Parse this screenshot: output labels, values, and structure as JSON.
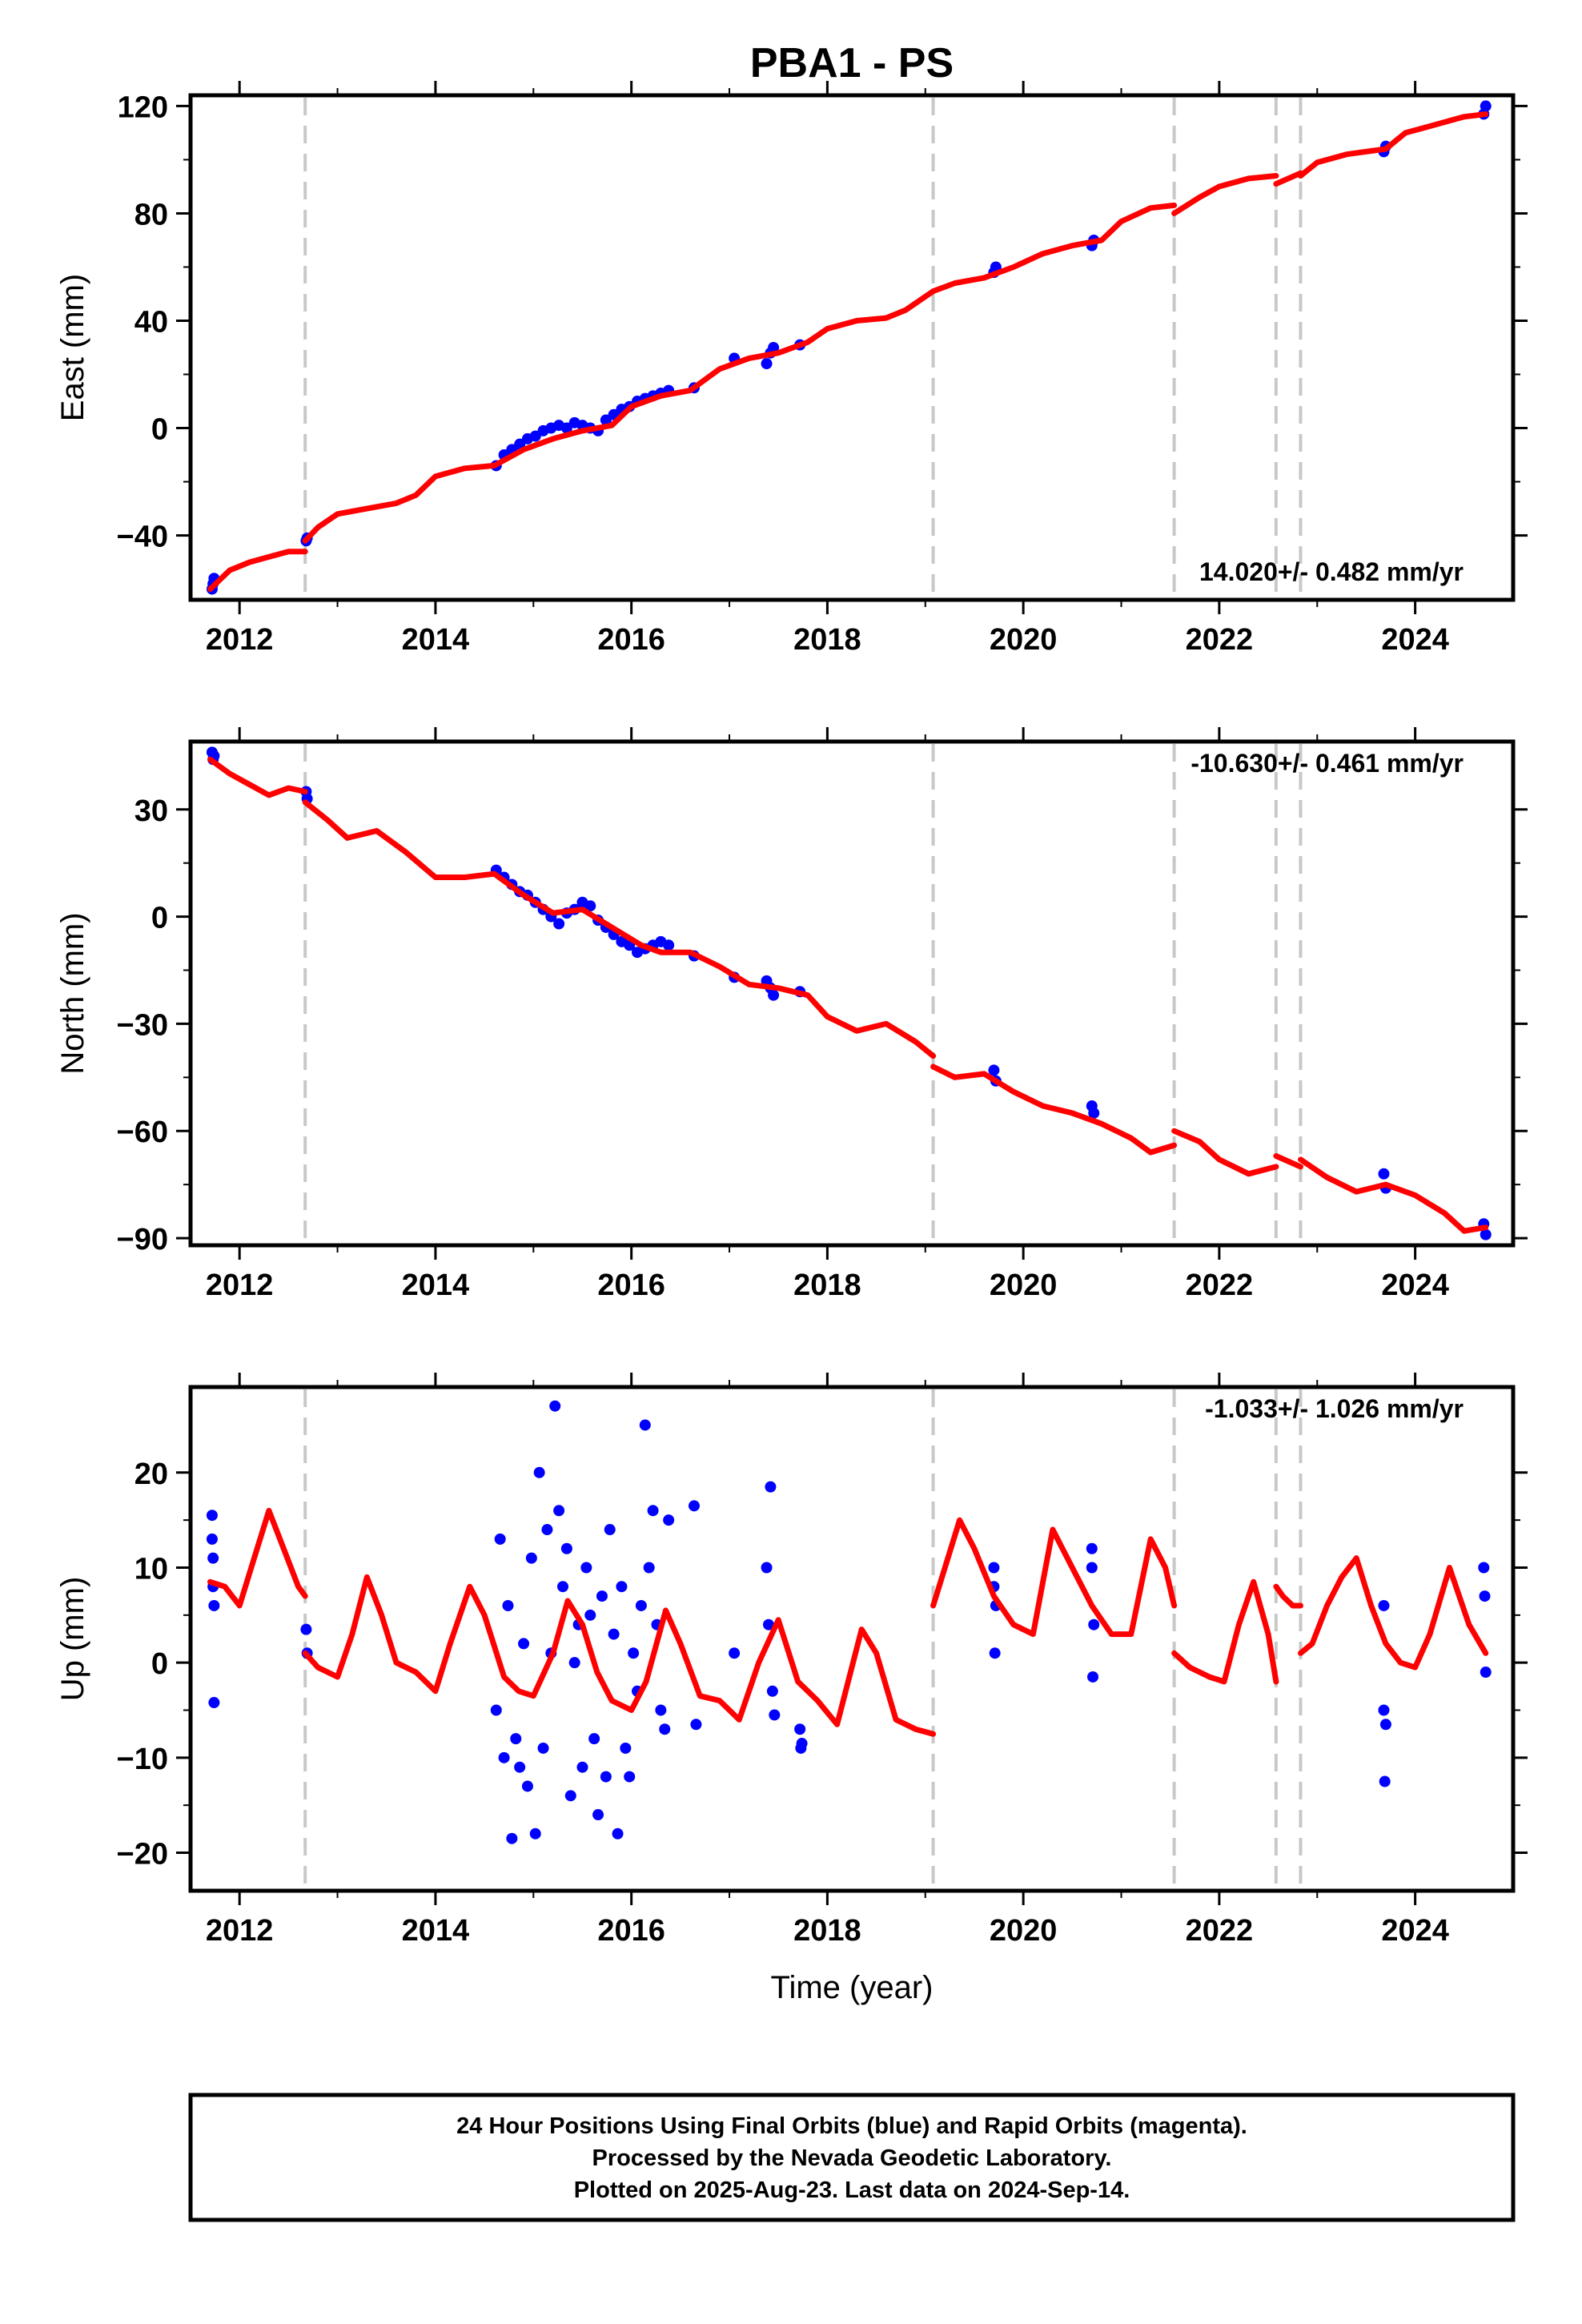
{
  "title": "PBA1 - PS",
  "colors": {
    "data_points": "#0000ff",
    "model_line": "#ff0000",
    "event_lines": "#c8c8c8",
    "axes": "#000000"
  },
  "event_lines_x": [
    2012.67,
    2019.08,
    2021.54,
    2022.58,
    2022.83
  ],
  "x_axis": {
    "xlabel": "Time (year)",
    "xlim": [
      2011.5,
      2025.0
    ],
    "ticks": [
      2012,
      2014,
      2016,
      2018,
      2020,
      2022,
      2024
    ],
    "tick_labels": [
      "2012",
      "2014",
      "2016",
      "2018",
      "2020",
      "2022",
      "2024"
    ]
  },
  "chart_data": [
    {
      "type": "scatter",
      "title": "",
      "ylabel": "East (mm)",
      "xlim": [
        2011.5,
        2025.0
      ],
      "ylim": [
        -64,
        124
      ],
      "yticks": [
        -40,
        0,
        40,
        80,
        120
      ],
      "ytick_labels": [
        "−40",
        "0",
        "40",
        "80",
        "120"
      ],
      "rate_label": "14.020+/- 0.482 mm/yr",
      "rate_position": "bottom-right",
      "series": [
        {
          "kind": "points",
          "x": [
            2011.72,
            2011.73,
            2011.74,
            2012.68,
            2012.69,
            2014.62,
            2014.7,
            2014.78,
            2014.86,
            2014.94,
            2015.02,
            2015.1,
            2015.18,
            2015.26,
            2015.34,
            2015.42,
            2015.5,
            2015.58,
            2015.66,
            2015.74,
            2015.82,
            2015.9,
            2015.98,
            2016.06,
            2016.14,
            2016.22,
            2016.3,
            2016.38,
            2016.64,
            2017.05,
            2017.38,
            2017.42,
            2017.45,
            2017.72,
            2019.7,
            2019.72,
            2020.7,
            2020.72,
            2023.68,
            2023.7,
            2024.7,
            2024.72
          ],
          "y": [
            -60,
            -58,
            -56,
            -42,
            -41,
            -14,
            -10,
            -8,
            -6,
            -4,
            -3,
            -1,
            0,
            1,
            0,
            2,
            1,
            0,
            -1,
            3,
            5,
            7,
            8,
            10,
            11,
            12,
            13,
            14,
            15,
            26,
            24,
            28,
            30,
            31,
            58,
            60,
            68,
            70,
            103,
            105,
            117,
            120
          ]
        },
        {
          "kind": "line",
          "segments": [
            {
              "x": [
                2011.7,
                2011.9,
                2012.1,
                2012.3,
                2012.5,
                2012.67
              ],
              "y": [
                -60,
                -53,
                -50,
                -48,
                -46,
                -46
              ]
            },
            {
              "x": [
                2012.67,
                2012.8,
                2013.0,
                2013.3,
                2013.6,
                2013.8,
                2014.0,
                2014.3,
                2014.6,
                2014.9,
                2015.2,
                2015.5,
                2015.8,
                2016.0,
                2016.3,
                2016.6,
                2016.9,
                2017.2,
                2017.5,
                2017.8,
                2018.0,
                2018.3,
                2018.6,
                2018.8,
                2019.08
              ],
              "y": [
                -42,
                -37,
                -32,
                -30,
                -28,
                -25,
                -18,
                -15,
                -14,
                -8,
                -4,
                -1,
                1,
                8,
                12,
                14,
                22,
                26,
                28,
                32,
                37,
                40,
                41,
                44,
                51
              ]
            },
            {
              "x": [
                2019.08,
                2019.3,
                2019.6,
                2019.9,
                2020.2,
                2020.5,
                2020.8,
                2021.0,
                2021.3,
                2021.54
              ],
              "y": [
                51,
                54,
                56,
                60,
                65,
                68,
                70,
                77,
                82,
                83
              ]
            },
            {
              "x": [
                2021.54,
                2021.8,
                2022.0,
                2022.3,
                2022.58
              ],
              "y": [
                80,
                86,
                90,
                93,
                94
              ]
            },
            {
              "x": [
                2022.58,
                2022.83
              ],
              "y": [
                91,
                95
              ]
            },
            {
              "x": [
                2022.83,
                2023.0,
                2023.3,
                2023.7,
                2023.9,
                2024.2,
                2024.5,
                2024.72
              ],
              "y": [
                94,
                99,
                102,
                104,
                110,
                113,
                116,
                117
              ]
            }
          ]
        }
      ]
    },
    {
      "type": "scatter",
      "title": "",
      "ylabel": "North (mm)",
      "xlim": [
        2011.5,
        2025.0
      ],
      "ylim": [
        -92,
        49
      ],
      "yticks": [
        -90,
        -60,
        -30,
        0,
        30
      ],
      "ytick_labels": [
        "−90",
        "−60",
        "−30",
        "0",
        "30"
      ],
      "rate_label": "-10.630+/- 0.461 mm/yr",
      "rate_position": "top-right",
      "series": [
        {
          "kind": "points",
          "x": [
            2011.72,
            2011.73,
            2011.74,
            2012.68,
            2012.69,
            2014.62,
            2014.7,
            2014.78,
            2014.86,
            2014.94,
            2015.02,
            2015.1,
            2015.18,
            2015.26,
            2015.34,
            2015.42,
            2015.5,
            2015.58,
            2015.66,
            2015.74,
            2015.82,
            2015.9,
            2015.98,
            2016.06,
            2016.14,
            2016.22,
            2016.3,
            2016.38,
            2016.64,
            2017.05,
            2017.38,
            2017.42,
            2017.45,
            2017.72,
            2019.7,
            2019.72,
            2020.7,
            2020.72,
            2023.68,
            2023.7,
            2024.7,
            2024.72
          ],
          "y": [
            46,
            44,
            45,
            35,
            33,
            13,
            11,
            9,
            7,
            6,
            4,
            2,
            0,
            -2,
            1,
            2,
            4,
            3,
            -1,
            -3,
            -5,
            -7,
            -8,
            -10,
            -9,
            -8,
            -7,
            -8,
            -11,
            -17,
            -18,
            -20,
            -22,
            -21,
            -43,
            -46,
            -53,
            -55,
            -72,
            -76,
            -86,
            -89
          ]
        },
        {
          "kind": "line",
          "segments": [
            {
              "x": [
                2011.7,
                2011.9,
                2012.1,
                2012.3,
                2012.5,
                2012.67
              ],
              "y": [
                44,
                40,
                37,
                34,
                36,
                35
              ]
            },
            {
              "x": [
                2012.67,
                2012.9,
                2013.1,
                2013.4,
                2013.7,
                2014.0,
                2014.3,
                2014.6,
                2014.9,
                2015.2,
                2015.5,
                2015.8,
                2016.1,
                2016.3,
                2016.6,
                2016.9,
                2017.2,
                2017.5,
                2017.8,
                2018.0,
                2018.3,
                2018.6,
                2018.9,
                2019.08
              ],
              "y": [
                32,
                27,
                22,
                24,
                18,
                11,
                11,
                12,
                6,
                1,
                2,
                -3,
                -8,
                -10,
                -10,
                -14,
                -19,
                -20,
                -22,
                -28,
                -32,
                -30,
                -35,
                -39
              ]
            },
            {
              "x": [
                2019.08,
                2019.3,
                2019.6,
                2019.9,
                2020.2,
                2020.5,
                2020.8,
                2021.1,
                2021.3,
                2021.54
              ],
              "y": [
                -42,
                -45,
                -44,
                -49,
                -53,
                -55,
                -58,
                -62,
                -66,
                -64
              ]
            },
            {
              "x": [
                2021.54,
                2021.8,
                2022.0,
                2022.3,
                2022.58
              ],
              "y": [
                -60,
                -63,
                -68,
                -72,
                -70
              ]
            },
            {
              "x": [
                2022.58,
                2022.83
              ],
              "y": [
                -67,
                -70
              ]
            },
            {
              "x": [
                2022.83,
                2023.1,
                2023.4,
                2023.7,
                2024.0,
                2024.3,
                2024.5,
                2024.72
              ],
              "y": [
                -68,
                -73,
                -77,
                -75,
                -78,
                -83,
                -88,
                -87
              ]
            }
          ]
        }
      ]
    },
    {
      "type": "scatter",
      "title": "",
      "ylabel": "Up (mm)",
      "xlim": [
        2011.5,
        2025.0
      ],
      "ylim": [
        -24,
        29
      ],
      "yticks": [
        -20,
        -10,
        0,
        10,
        20
      ],
      "ytick_labels": [
        "−20",
        "−10",
        "0",
        "10",
        "20"
      ],
      "rate_label": "-1.033+/- 1.026 mm/yr",
      "rate_position": "top-right",
      "series": [
        {
          "kind": "points",
          "x": [
            2011.72,
            2011.72,
            2011.73,
            2011.73,
            2011.74,
            2011.74,
            2012.68,
            2012.69,
            2014.62,
            2014.66,
            2014.7,
            2014.74,
            2014.78,
            2014.82,
            2014.86,
            2014.9,
            2014.94,
            2014.98,
            2015.02,
            2015.06,
            2015.1,
            2015.14,
            2015.18,
            2015.22,
            2015.26,
            2015.3,
            2015.34,
            2015.38,
            2015.42,
            2015.46,
            2015.5,
            2015.54,
            2015.58,
            2015.62,
            2015.66,
            2015.7,
            2015.74,
            2015.78,
            2015.82,
            2015.86,
            2015.9,
            2015.94,
            2015.98,
            2016.02,
            2016.06,
            2016.1,
            2016.14,
            2016.18,
            2016.22,
            2016.26,
            2016.3,
            2016.34,
            2016.38,
            2016.64,
            2016.66,
            2017.05,
            2017.38,
            2017.4,
            2017.42,
            2017.44,
            2017.46,
            2017.72,
            2017.73,
            2017.74,
            2019.7,
            2019.7,
            2019.71,
            2019.72,
            2020.7,
            2020.7,
            2020.71,
            2020.72,
            2023.68,
            2023.68,
            2023.69,
            2023.7,
            2024.7,
            2024.71,
            2024.72
          ],
          "y": [
            15.5,
            13,
            11,
            8,
            6,
            -4.2,
            3.5,
            1,
            -5,
            13,
            -10,
            6,
            -18.5,
            -8,
            -11,
            2,
            -13,
            11,
            -18,
            20,
            -9,
            14,
            1,
            27,
            16,
            8,
            12,
            -14,
            0,
            4,
            -11,
            10,
            5,
            -8,
            -16,
            7,
            -12,
            14,
            3,
            -18,
            8,
            -9,
            -12,
            1,
            -3,
            6,
            25,
            10,
            16,
            4,
            -5,
            -7,
            15,
            16.5,
            -6.5,
            1,
            10,
            4,
            18.5,
            -3,
            -5.5,
            -7,
            -9,
            -8.5,
            10,
            8,
            1,
            6,
            12,
            10,
            -1.5,
            4,
            6,
            -5,
            -12.5,
            -6.5,
            10,
            7,
            -1
          ]
        },
        {
          "kind": "line",
          "segments": [
            {
              "x": [
                2011.7,
                2011.85,
                2012.0,
                2012.15,
                2012.3,
                2012.45,
                2012.6,
                2012.67
              ],
              "y": [
                8.5,
                8,
                6,
                11,
                16,
                12,
                8,
                7
              ]
            },
            {
              "x": [
                2012.67,
                2012.8,
                2013.0,
                2013.15,
                2013.3,
                2013.45,
                2013.6,
                2013.8,
                2014.0,
                2014.15,
                2014.35,
                2014.5,
                2014.7,
                2014.85,
                2015.0,
                2015.2,
                2015.35,
                2015.5,
                2015.65,
                2015.8,
                2016.0,
                2016.15,
                2016.35,
                2016.5,
                2016.7,
                2016.9,
                2017.1,
                2017.3,
                2017.5,
                2017.7,
                2017.9,
                2018.1,
                2018.35,
                2018.5,
                2018.7,
                2018.9,
                2019.08
              ],
              "y": [
                1,
                -0.5,
                -1.5,
                3,
                9,
                5,
                0,
                -1,
                -3,
                2,
                8,
                5,
                -1.5,
                -3,
                -3.5,
                1,
                6.5,
                4,
                -1,
                -4,
                -5,
                -2,
                5.5,
                2,
                -3.5,
                -4,
                -6,
                0,
                4.5,
                -2,
                -4,
                -6.5,
                3.5,
                1,
                -6,
                -7,
                -7.5
              ]
            },
            {
              "x": [
                2019.08,
                2019.2,
                2019.35,
                2019.5,
                2019.7,
                2019.9,
                2020.1,
                2020.3,
                2020.5,
                2020.7,
                2020.9,
                2021.1,
                2021.3,
                2021.45,
                2021.54
              ],
              "y": [
                6,
                10,
                15,
                12,
                7,
                4,
                3,
                14,
                10,
                6,
                3,
                3,
                13,
                10,
                6
              ]
            },
            {
              "x": [
                2021.54,
                2021.7,
                2021.9,
                2022.05,
                2022.2,
                2022.35,
                2022.5,
                2022.58
              ],
              "y": [
                1,
                -0.5,
                -1.5,
                -2,
                4,
                8.5,
                3,
                -2
              ]
            },
            {
              "x": [
                2022.58,
                2022.65,
                2022.75,
                2022.83
              ],
              "y": [
                8,
                7,
                6,
                6
              ]
            },
            {
              "x": [
                2022.83,
                2022.95,
                2023.1,
                2023.25,
                2023.4,
                2023.55,
                2023.7,
                2023.85,
                2024.0,
                2024.15,
                2024.35,
                2024.55,
                2024.72
              ],
              "y": [
                1,
                2,
                6,
                9,
                11,
                6,
                2,
                0,
                -0.5,
                3,
                10,
                4,
                1
              ]
            }
          ]
        }
      ]
    }
  ],
  "footer": {
    "line1": "24 Hour Positions Using Final Orbits (blue) and Rapid Orbits (magenta).",
    "line2": "Processed by the Nevada Geodetic Laboratory.",
    "line3": "Plotted on 2025-Aug-23. Last data on 2024-Sep-14."
  }
}
